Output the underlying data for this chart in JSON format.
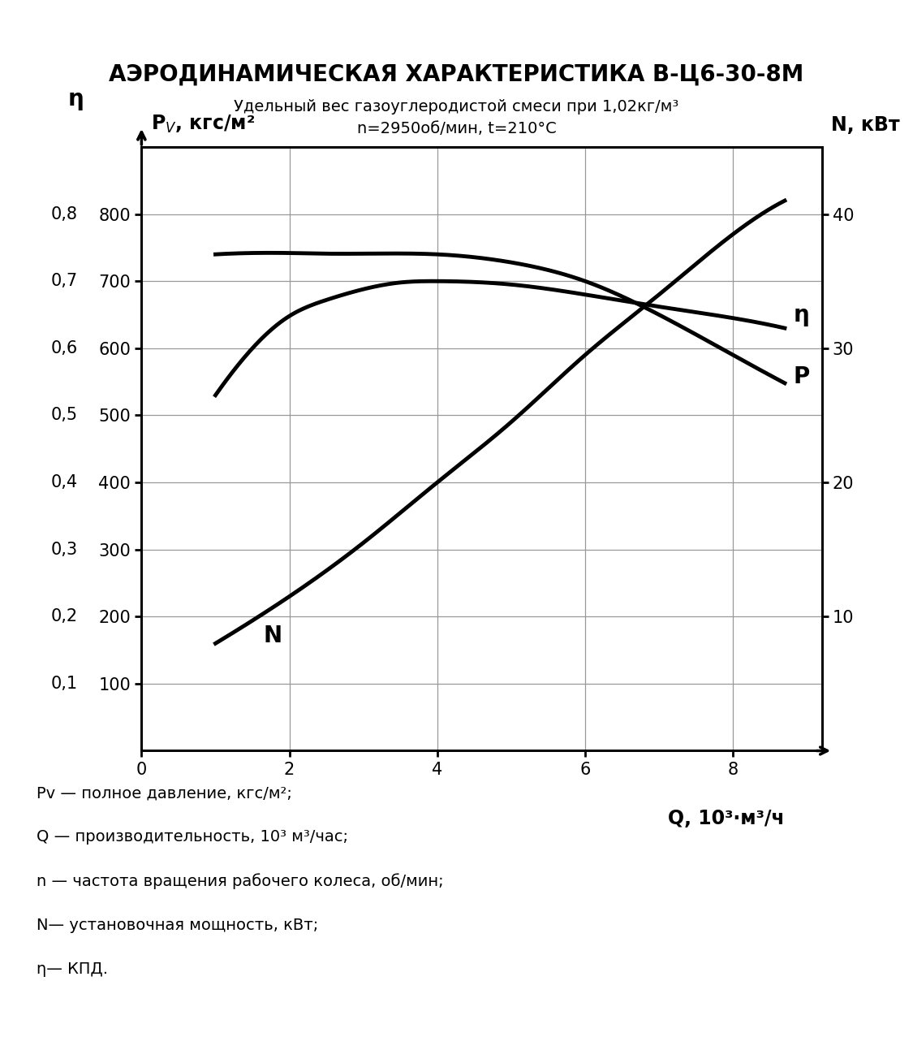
{
  "title": "АЭРОДИНАМИЧЕСКАЯ ХАРАКТЕРИСТИКА В-Ц6-30-8М",
  "subtitle1": "Удельный вес газоуглеродистой смеси при 1,02кг/м³",
  "subtitle2": "n=2950об/мин, t=210°C",
  "xlabel": "Q, 10³·м³/ч",
  "x_ticks": [
    0,
    2,
    4,
    6,
    8
  ],
  "xlim": [
    0,
    9.2
  ],
  "pv_ylim": [
    0,
    900
  ],
  "pv_yticks": [
    100,
    200,
    300,
    400,
    500,
    600,
    700,
    800
  ],
  "eta_ytick_labels": [
    "0,1",
    "0,2",
    "0,3",
    "0,4",
    "0,5",
    "0,6",
    "0,7",
    "0,8"
  ],
  "N_ylim": [
    0,
    45
  ],
  "N_yticks": [
    10,
    20,
    30,
    40
  ],
  "P_curve_x": [
    1.0,
    1.5,
    2.0,
    2.5,
    3.0,
    4.0,
    5.0,
    6.0,
    7.0,
    8.0,
    8.7
  ],
  "P_curve_y": [
    740,
    742,
    742,
    741,
    741,
    740,
    728,
    700,
    650,
    590,
    548
  ],
  "eta_curve_x": [
    1.0,
    1.5,
    2.0,
    2.5,
    3.0,
    3.5,
    4.0,
    5.0,
    6.0,
    7.0,
    8.0,
    8.7
  ],
  "eta_curve_y": [
    530,
    600,
    648,
    672,
    688,
    698,
    700,
    695,
    680,
    662,
    645,
    630
  ],
  "N_curve_x": [
    1.0,
    2.0,
    3.0,
    4.0,
    5.0,
    6.0,
    7.0,
    8.0,
    8.7
  ],
  "N_curve_y": [
    8.0,
    11.5,
    15.5,
    20.0,
    24.5,
    29.5,
    34.0,
    38.5,
    41.0
  ],
  "background_color": "#ffffff",
  "line_color": "#000000",
  "grid_color": "#999999",
  "title_fontsize": 20,
  "subtitle_fontsize": 14,
  "label_fontsize": 16,
  "tick_fontsize": 15,
  "curve_linewidth": 3.5,
  "annotation_fontsize": 18,
  "footnote_fontsize": 14,
  "footnote_lines": [
    "Pv — полное давление, кгс/м²;",
    "Q — производительность, 10³ м³/час;",
    "n — частота вращения рабочего колеса, об/мин;",
    "N— установочная мощность, кВт;",
    "η— КПД."
  ]
}
